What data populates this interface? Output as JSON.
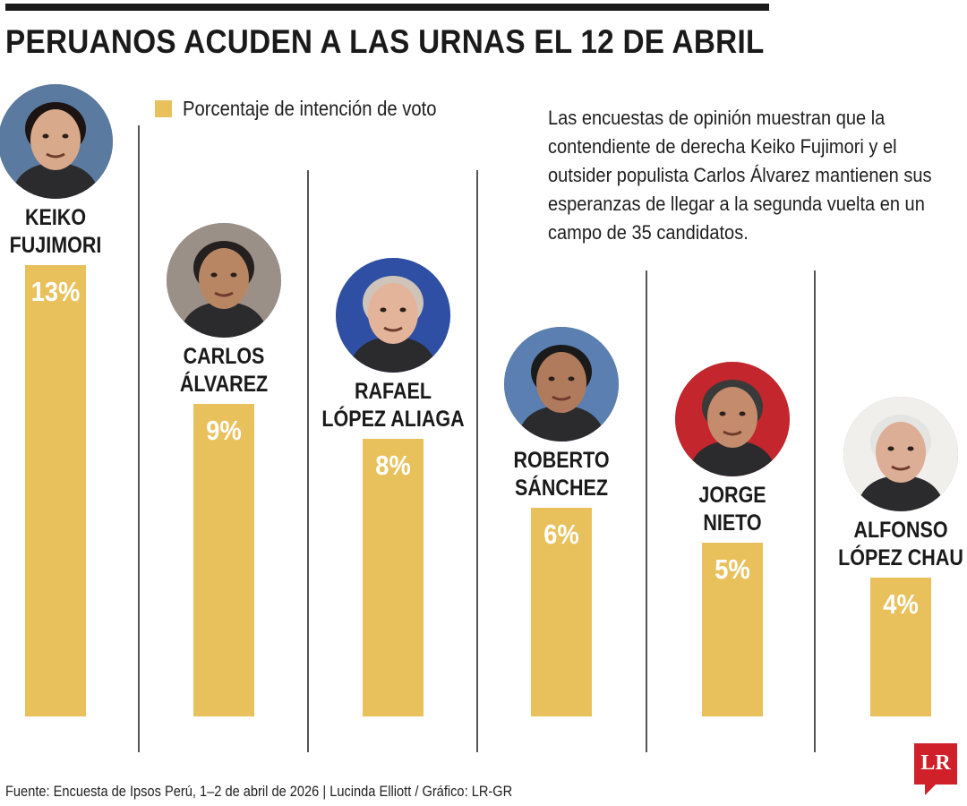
{
  "title": "PERUANOS ACUDEN A LAS URNAS EL 12 DE ABRIL",
  "legend": "Porcentaje de intención de voto",
  "note": "Las encuestas de opinión muestran que la contendiente de derecha Keiko Fujimori y el outsider populista Carlos Álvarez mantienen sus esperanzas de llegar a la segunda vuelta en un campo de 35 candidatos.",
  "source": "Fuente: Encuesta de Ipsos Perú, 1–2 de abril de 2026 | Lucinda Elliott / Gráfico: LR-GR",
  "logo": "LR",
  "colors": {
    "bar": "#e9c15c",
    "value_text": "#ffffff",
    "logo": "#d0202a"
  },
  "chart_data": {
    "type": "bar",
    "title": "PERUANOS ACUDEN A LAS URNAS EL 12 DE ABRIL",
    "legend": "Porcentaje de intención de voto",
    "categories": [
      "KEIKO FUJIMORI",
      "CARLOS ÁLVAREZ",
      "RAFAEL LÓPEZ ALIAGA",
      "ROBERTO SÁNCHEZ",
      "JORGE NIETO",
      "ALFONSO LÓPEZ CHAU"
    ],
    "series": [
      {
        "name": "Porcentaje de intención de voto",
        "values": [
          13,
          9,
          8,
          6,
          5,
          4
        ],
        "labels": [
          "13%",
          "9%",
          "8%",
          "6%",
          "5%",
          "4%"
        ]
      }
    ],
    "candidates": [
      {
        "name_lines": [
          "KEIKO",
          "FUJIMORI"
        ],
        "value": 13,
        "label": "13%",
        "photo": "portrait-keiko-fujimori"
      },
      {
        "name_lines": [
          "CARLOS",
          "ÁLVAREZ"
        ],
        "value": 9,
        "label": "9%",
        "photo": "portrait-carlos-alvarez"
      },
      {
        "name_lines": [
          "RAFAEL",
          "LÓPEZ ALIAGA"
        ],
        "value": 8,
        "label": "8%",
        "photo": "portrait-rafael-lopez-aliaga"
      },
      {
        "name_lines": [
          "ROBERTO",
          "SÁNCHEZ"
        ],
        "value": 6,
        "label": "6%",
        "photo": "portrait-roberto-sanchez"
      },
      {
        "name_lines": [
          "JORGE",
          "NIETO"
        ],
        "value": 5,
        "label": "5%",
        "photo": "portrait-jorge-nieto"
      },
      {
        "name_lines": [
          "ALFONSO",
          "LÓPEZ CHAU"
        ],
        "value": 4,
        "label": "4%",
        "photo": "portrait-alfonso-lopez-chau"
      }
    ],
    "grid": false,
    "legend_position": "top-left"
  }
}
